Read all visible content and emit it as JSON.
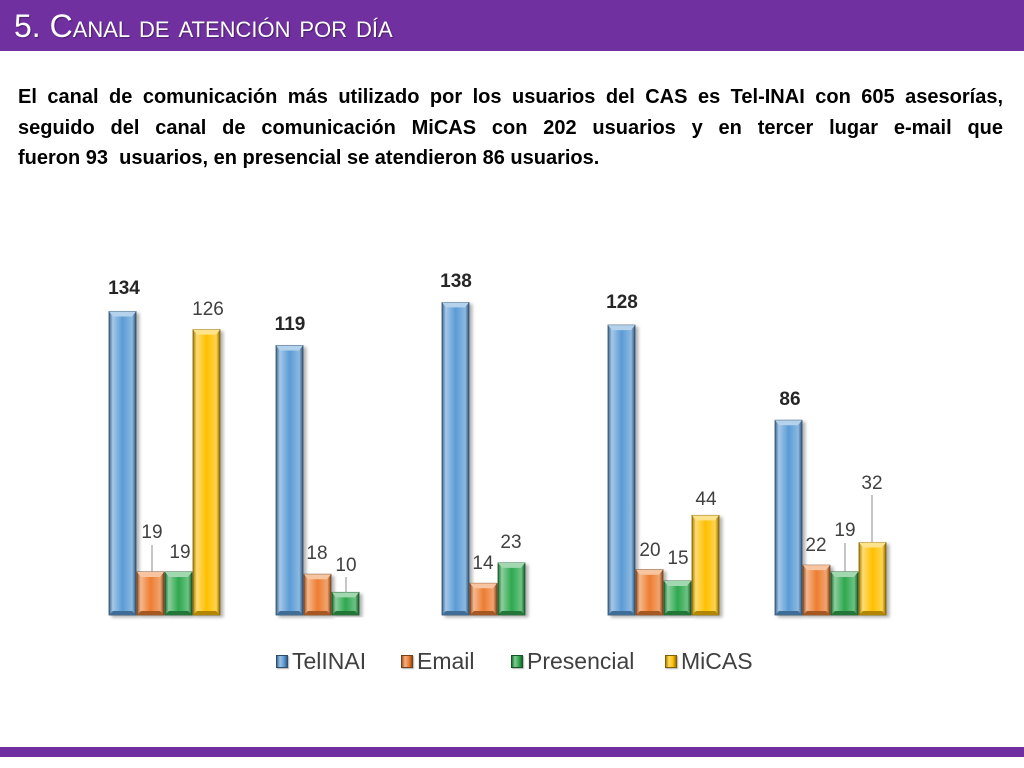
{
  "header": {
    "title": "5. Canal de atención por día"
  },
  "body": {
    "paragraph_lines": [
      "El canal de comunicación más utilizado por los usuarios del CAS es Tel-INAI con 605 asesorías,",
      "seguido del canal de comunicación MiCAS con 202 usuarios y en tercer lugar e-mail que",
      "fueron 93  usuarios, en presencial se atendieron 86 usuarios."
    ]
  },
  "colors": {
    "banner": "#7030A0",
    "body_text": "#000000",
    "legend_text": "#404040"
  },
  "chart_data": {
    "type": "bar",
    "series": [
      {
        "name": "TelINAI",
        "values": [
          134,
          119,
          138,
          128,
          86
        ],
        "color": "#5B9BD5"
      },
      {
        "name": "Email",
        "values": [
          19,
          18,
          14,
          20,
          22
        ],
        "color": "#ED7D31"
      },
      {
        "name": "Presencial",
        "values": [
          19,
          10,
          23,
          15,
          19
        ],
        "color": "#2EA84E"
      },
      {
        "name": "MiCAS",
        "values": [
          126,
          null,
          null,
          44,
          32
        ],
        "color": "#FFC000"
      }
    ],
    "data_labels": true,
    "axes_visible": false,
    "grid": false,
    "legend": "bottom"
  }
}
